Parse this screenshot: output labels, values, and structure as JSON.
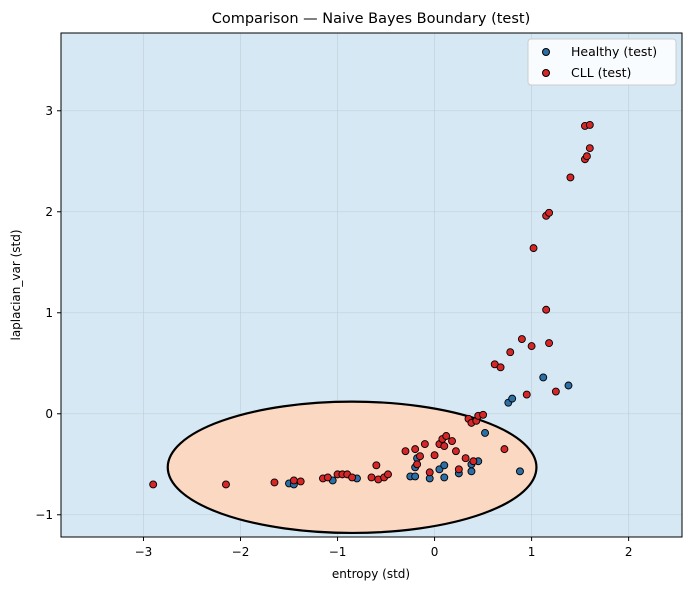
{
  "chart_data": {
    "type": "scatter",
    "title": "Comparison — Naive Bayes Boundary (test)",
    "xlabel": "entropy (std)",
    "ylabel": "laplacian_var (std)",
    "xlim": [
      -3.85,
      2.55
    ],
    "ylim": [
      -1.22,
      3.77
    ],
    "xticks": [
      -3,
      -2,
      -1,
      0,
      1,
      2
    ],
    "yticks": [
      -1,
      0,
      1,
      2,
      3
    ],
    "grid": true,
    "legend_position": "top-right",
    "colors": {
      "background_region": "#d6e8f3",
      "boundary_region": "#fbd8c2",
      "boundary_line": "#000000",
      "grid": "#b9c7d1",
      "healthy": "#2c6ea6",
      "cll": "#d62728"
    },
    "boundary": {
      "type": "ellipse",
      "center": [
        -0.85,
        -0.53
      ],
      "x_half_width": 1.9,
      "y_half_height": 0.65
    },
    "series": [
      {
        "name": "Healthy (test)",
        "color": "#2c6ea6",
        "points": [
          [
            -1.5,
            -0.69
          ],
          [
            -1.45,
            -0.7
          ],
          [
            -1.05,
            -0.66
          ],
          [
            -0.8,
            -0.64
          ],
          [
            -0.25,
            -0.62
          ],
          [
            -0.2,
            -0.53
          ],
          [
            -0.18,
            -0.44
          ],
          [
            -0.2,
            -0.62
          ],
          [
            -0.05,
            -0.64
          ],
          [
            0.05,
            -0.55
          ],
          [
            0.1,
            -0.51
          ],
          [
            0.1,
            -0.63
          ],
          [
            0.25,
            -0.59
          ],
          [
            0.38,
            -0.5
          ],
          [
            0.38,
            -0.57
          ],
          [
            0.45,
            -0.47
          ],
          [
            0.52,
            -0.19
          ],
          [
            0.76,
            0.11
          ],
          [
            0.8,
            0.15
          ],
          [
            0.88,
            -0.57
          ],
          [
            1.12,
            0.36
          ],
          [
            1.38,
            0.28
          ]
        ]
      },
      {
        "name": "CLL (test)",
        "color": "#d62728",
        "points": [
          [
            -2.9,
            -0.7
          ],
          [
            -2.15,
            -0.7
          ],
          [
            -1.65,
            -0.68
          ],
          [
            -1.45,
            -0.66
          ],
          [
            -1.38,
            -0.67
          ],
          [
            -1.15,
            -0.64
          ],
          [
            -1.1,
            -0.63
          ],
          [
            -1.0,
            -0.6
          ],
          [
            -0.95,
            -0.6
          ],
          [
            -0.9,
            -0.6
          ],
          [
            -0.85,
            -0.63
          ],
          [
            -0.65,
            -0.63
          ],
          [
            -0.6,
            -0.51
          ],
          [
            -0.58,
            -0.65
          ],
          [
            -0.52,
            -0.63
          ],
          [
            -0.48,
            -0.6
          ],
          [
            -0.3,
            -0.37
          ],
          [
            -0.2,
            -0.35
          ],
          [
            -0.18,
            -0.5
          ],
          [
            -0.15,
            -0.42
          ],
          [
            -0.1,
            -0.3
          ],
          [
            -0.05,
            -0.58
          ],
          [
            0.0,
            -0.41
          ],
          [
            0.05,
            -0.3
          ],
          [
            0.08,
            -0.25
          ],
          [
            0.1,
            -0.32
          ],
          [
            0.12,
            -0.22
          ],
          [
            0.18,
            -0.27
          ],
          [
            0.22,
            -0.37
          ],
          [
            0.25,
            -0.55
          ],
          [
            0.32,
            -0.44
          ],
          [
            0.35,
            -0.05
          ],
          [
            0.38,
            -0.09
          ],
          [
            0.4,
            -0.47
          ],
          [
            0.43,
            -0.07
          ],
          [
            0.45,
            -0.02
          ],
          [
            0.5,
            -0.01
          ],
          [
            0.62,
            0.49
          ],
          [
            0.68,
            0.46
          ],
          [
            0.72,
            -0.35
          ],
          [
            0.78,
            0.61
          ],
          [
            0.9,
            0.74
          ],
          [
            0.95,
            0.19
          ],
          [
            1.0,
            0.67
          ],
          [
            1.02,
            1.64
          ],
          [
            1.15,
            1.96
          ],
          [
            1.18,
            1.99
          ],
          [
            1.15,
            1.03
          ],
          [
            1.18,
            0.7
          ],
          [
            1.25,
            0.22
          ],
          [
            1.4,
            2.34
          ],
          [
            1.55,
            2.52
          ],
          [
            1.57,
            2.55
          ],
          [
            1.6,
            2.63
          ],
          [
            1.55,
            2.85
          ],
          [
            1.6,
            2.86
          ]
        ]
      }
    ]
  }
}
